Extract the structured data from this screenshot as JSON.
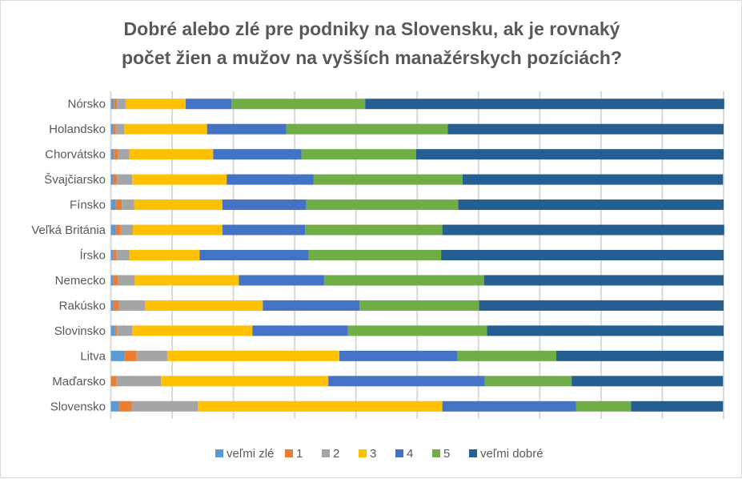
{
  "chart_data": {
    "type": "bar",
    "orientation": "horizontal",
    "stacked": "percent",
    "title_lines": [
      "Dobré alebo zlé pre podniky na Slovensku, ak je rovnaký",
      "počet žien a mužov na vyšších manažérskych pozíciách?"
    ],
    "categories": [
      "Nórsko",
      "Holandsko",
      "Chorvátsko",
      "Švajčiarsko",
      "Fínsko",
      "Veľká Británia",
      "Írsko",
      "Nemecko",
      "Rakúsko",
      "Slovinsko",
      "Litva",
      "Maďarsko",
      "Slovensko"
    ],
    "series": [
      {
        "name": "veľmi zlé",
        "color": "#5b9bd5",
        "values": [
          0.5,
          0.4,
          0.5,
          0.4,
          0.8,
          0.8,
          0.4,
          0.4,
          0.4,
          0.6,
          2.2,
          0.0,
          1.3
        ]
      },
      {
        "name": "1",
        "color": "#ed7d31",
        "values": [
          0.5,
          0.4,
          0.7,
          0.6,
          1.0,
          0.8,
          0.5,
          0.8,
          0.9,
          0.4,
          2.0,
          0.9,
          2.1
        ]
      },
      {
        "name": "2",
        "color": "#a5a5a5",
        "values": [
          1.4,
          1.4,
          1.8,
          2.5,
          2.0,
          2.0,
          2.1,
          2.7,
          4.3,
          2.5,
          5.0,
          7.3,
          10.8
        ]
      },
      {
        "name": "3",
        "color": "#ffc000",
        "values": [
          9.8,
          13.5,
          13.7,
          15.4,
          14.4,
          14.6,
          11.5,
          17.0,
          19.2,
          19.6,
          28.1,
          27.3,
          39.9
        ]
      },
      {
        "name": "4",
        "color": "#4472c4",
        "values": [
          7.5,
          12.9,
          14.4,
          14.2,
          13.7,
          13.5,
          17.8,
          13.9,
          15.8,
          15.6,
          19.2,
          25.5,
          21.8
        ]
      },
      {
        "name": "5",
        "color": "#70ad47",
        "values": [
          21.8,
          26.4,
          18.7,
          24.3,
          24.8,
          22.4,
          21.6,
          26.1,
          19.5,
          22.7,
          16.2,
          14.2,
          9.0
        ]
      },
      {
        "name": "veľmi dobré",
        "color": "#255e91",
        "values": [
          58.6,
          45.0,
          50.2,
          42.5,
          43.3,
          46.0,
          46.1,
          39.1,
          39.9,
          38.6,
          27.3,
          24.7,
          15.0
        ]
      }
    ],
    "xlim": [
      0,
      100
    ],
    "grid": true,
    "legend_position": "bottom"
  }
}
